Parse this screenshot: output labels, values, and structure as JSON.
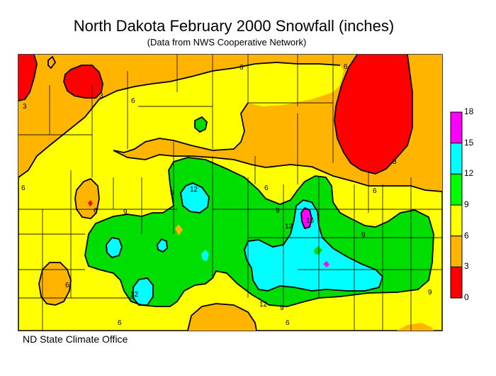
{
  "title": "North Dakota February 2000 Snowfall (inches)",
  "subtitle": "(Data from NWS Cooperative Network)",
  "credit": "ND State Climate Office",
  "legend": {
    "ticks": [
      "18",
      "15",
      "12",
      "9",
      "6",
      "3",
      "0"
    ],
    "bands": [
      {
        "from": 15,
        "to": 18,
        "color": "#ff00ff"
      },
      {
        "from": 12,
        "to": 15,
        "color": "#00ffff"
      },
      {
        "from": 9,
        "to": 12,
        "color": "#00ff00"
      },
      {
        "from": 6,
        "to": 9,
        "color": "#ffff00"
      },
      {
        "from": 3,
        "to": 6,
        "color": "#ffb400"
      },
      {
        "from": 0,
        "to": 3,
        "color": "#ff0000"
      }
    ]
  },
  "contour_labels": [
    "3",
    "3",
    "6",
    "6",
    "6",
    "6",
    "3",
    "6",
    "6",
    "6",
    "6",
    "9",
    "9",
    "9",
    "12",
    "12",
    "12",
    "12",
    "16",
    "9",
    "9",
    "9",
    "6",
    "6"
  ]
}
